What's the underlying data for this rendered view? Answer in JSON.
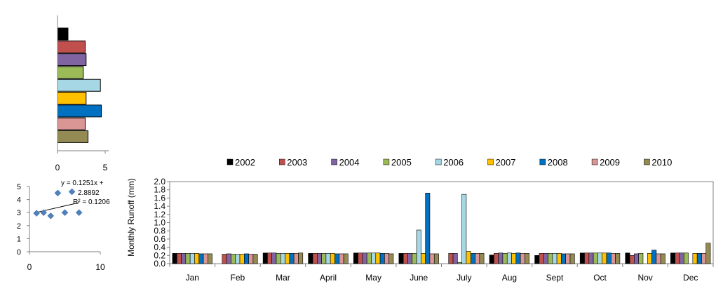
{
  "colors": {
    "2002": "#000000",
    "2003": "#c0504d",
    "2004": "#8064a2",
    "2005": "#9bbb59",
    "2006": "#a5d8e4",
    "2007": "#ffc000",
    "2008": "#0070c0",
    "2009": "#d99694",
    "2010": "#948a54",
    "scatter_point": "#4f81bd",
    "axis": "#808080"
  },
  "chart_data": [
    {
      "type": "bar",
      "id": "horizontal-year-bars",
      "orientation": "horizontal",
      "categories": [
        "2002",
        "2003",
        "2004",
        "2005",
        "2006",
        "2007",
        "2008",
        "2009",
        "2010"
      ],
      "values": [
        1.1,
        2.9,
        3.0,
        2.7,
        4.5,
        3.0,
        4.6,
        2.9,
        3.2
      ],
      "xlim": [
        0,
        5
      ],
      "xticks": [
        "0",
        "5"
      ],
      "legend": "none"
    },
    {
      "type": "scatter",
      "id": "regression-scatter",
      "points": [
        [
          1,
          2.95
        ],
        [
          2,
          3.0
        ],
        [
          3,
          2.75
        ],
        [
          4,
          4.5
        ],
        [
          5,
          3.0
        ],
        [
          6,
          4.6
        ],
        [
          7,
          3.0
        ]
      ],
      "trendline": {
        "slope": 0.1251,
        "intercept": 2.8892
      },
      "equation_line1": "y = 0.1251x +",
      "equation_line2": "2.8892",
      "r2_label": "R² = 0.1206",
      "xlim": [
        0,
        10
      ],
      "ylim": [
        0,
        5
      ],
      "xticks": [
        "0",
        "10"
      ],
      "yticks": [
        "0",
        "1",
        "2",
        "3",
        "4",
        "5"
      ]
    },
    {
      "type": "bar",
      "id": "monthly-runoff",
      "ylabel": "Monthly  Runoff (mm)",
      "ylim": [
        0,
        2.0
      ],
      "yticks": [
        "0.0",
        "0.2",
        "0.4",
        "0.6",
        "0.8",
        "1.0",
        "1.2",
        "1.4",
        "1.6",
        "1.8",
        "2.0"
      ],
      "categories": [
        "Jan",
        "Feb",
        "Mar",
        "April",
        "May",
        "June",
        "July",
        "Aug",
        "Sept",
        "Oct",
        "Nov",
        "Dec"
      ],
      "legend": "top",
      "grid": false,
      "series": [
        {
          "name": "2002",
          "values": [
            0.25,
            0.0,
            0.26,
            0.25,
            0.26,
            0.25,
            0.0,
            0.21,
            0.2,
            0.26,
            0.26,
            0.26
          ]
        },
        {
          "name": "2003",
          "values": [
            0.25,
            0.23,
            0.26,
            0.25,
            0.26,
            0.25,
            0.25,
            0.25,
            0.25,
            0.26,
            0.2,
            0.26
          ]
        },
        {
          "name": "2004",
          "values": [
            0.25,
            0.24,
            0.26,
            0.25,
            0.26,
            0.25,
            0.25,
            0.26,
            0.25,
            0.26,
            0.24,
            0.26
          ]
        },
        {
          "name": "2005",
          "values": [
            0.25,
            0.23,
            0.25,
            0.25,
            0.26,
            0.25,
            0.03,
            0.25,
            0.25,
            0.26,
            0.25,
            0.26
          ]
        },
        {
          "name": "2006",
          "values": [
            0.25,
            0.23,
            0.25,
            0.25,
            0.26,
            0.82,
            1.69,
            0.26,
            0.25,
            0.26,
            0.0,
            0.0
          ]
        },
        {
          "name": "2007",
          "values": [
            0.25,
            0.23,
            0.25,
            0.25,
            0.26,
            0.25,
            0.3,
            0.25,
            0.25,
            0.26,
            0.25,
            0.25
          ]
        },
        {
          "name": "2008",
          "values": [
            0.24,
            0.24,
            0.25,
            0.24,
            0.25,
            1.72,
            0.25,
            0.26,
            0.24,
            0.26,
            0.33,
            0.25
          ]
        },
        {
          "name": "2009",
          "values": [
            0.24,
            0.23,
            0.25,
            0.24,
            0.25,
            0.24,
            0.25,
            0.25,
            0.24,
            0.25,
            0.24,
            0.25
          ]
        },
        {
          "name": "2010",
          "values": [
            0.24,
            0.23,
            0.26,
            0.24,
            0.24,
            0.24,
            0.25,
            0.25,
            0.24,
            0.25,
            0.24,
            0.5
          ]
        }
      ]
    }
  ]
}
